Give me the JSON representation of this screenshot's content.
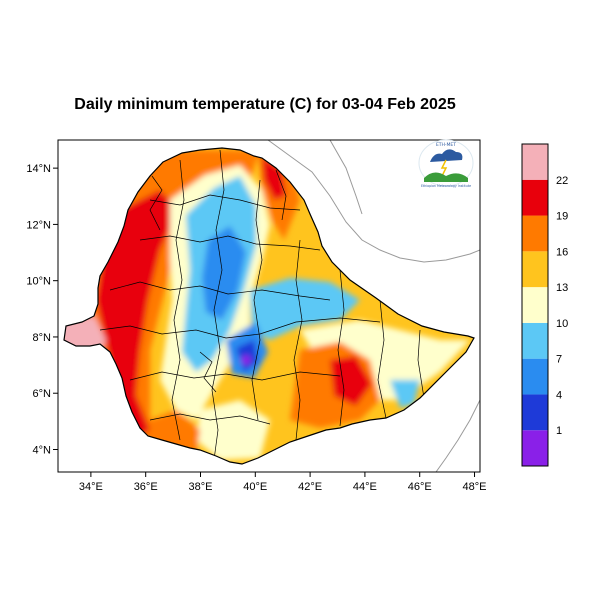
{
  "title": "Daily minimum temperature (C) for 03-04 Feb 2025",
  "map": {
    "lon_range": [
      32.8,
      48.2
    ],
    "lat_range": [
      3.2,
      15.0
    ],
    "x_ticks": [
      "34°E",
      "36°E",
      "38°E",
      "40°E",
      "42°E",
      "44°E",
      "46°E",
      "48°E"
    ],
    "y_ticks": [
      "14°N",
      "12°N",
      "10°N",
      "8°N",
      "6°N",
      "4°N"
    ]
  },
  "logo": {
    "top_text": "የኢትዮጵያ ሜቴዎሮሎጂ ኢንስቲትዩት",
    "bottom_text": "Ethiopian Meteorology Institute"
  },
  "colorbar": {
    "labels": [
      "22",
      "19",
      "16",
      "13",
      "10",
      "7",
      "4",
      "1"
    ],
    "colors": [
      "#f4b0b8",
      "#e8000c",
      "#ff7a00",
      "#ffc41e",
      "#ffffcc",
      "#5cc8f5",
      "#2a8cf0",
      "#1e3ad8",
      "#8a20e8"
    ]
  }
}
